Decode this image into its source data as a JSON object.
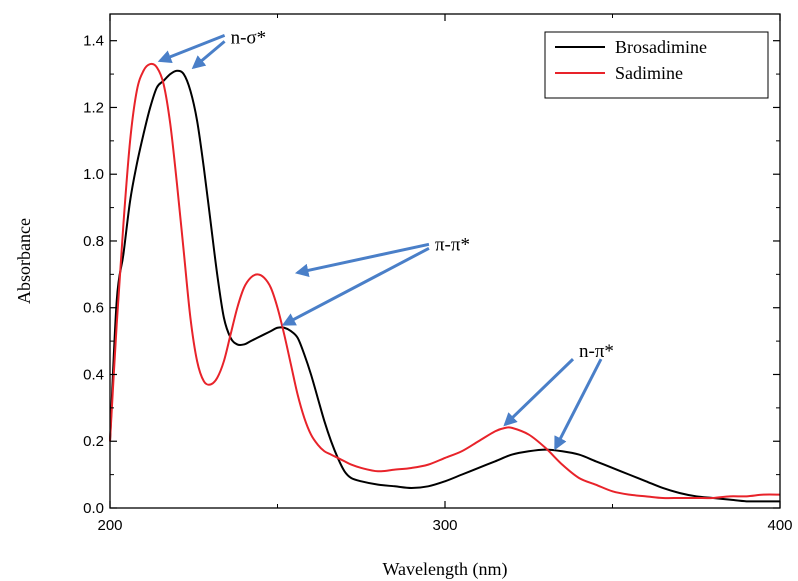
{
  "chart_data": {
    "type": "line",
    "title": "",
    "xlabel": "Wavelength (nm)",
    "ylabel": "Absorbance",
    "xlim": [
      200,
      400
    ],
    "ylim": [
      0.0,
      1.48
    ],
    "xticks": [
      "200",
      "300",
      "400"
    ],
    "yticks": [
      "0.0",
      "0.2",
      "0.4",
      "0.6",
      "0.8",
      "1.0",
      "1.2",
      "1.4"
    ],
    "grid": false,
    "legend_position": "top-right",
    "series": [
      {
        "name": "Brosadimine",
        "color": "#000000",
        "x": [
          200,
          202,
          204,
          206,
          208,
          210,
          212,
          214,
          216,
          218,
          220,
          222,
          224,
          226,
          228,
          230,
          232,
          234,
          236,
          238,
          240,
          242,
          244,
          246,
          248,
          250,
          252,
          254,
          256,
          258,
          260,
          262,
          264,
          266,
          268,
          270,
          272,
          275,
          280,
          285,
          290,
          295,
          300,
          305,
          310,
          315,
          320,
          325,
          330,
          335,
          340,
          345,
          350,
          355,
          360,
          365,
          370,
          375,
          380,
          385,
          390,
          395,
          400
        ],
        "y": [
          0.2,
          0.62,
          0.76,
          0.92,
          1.03,
          1.12,
          1.2,
          1.26,
          1.28,
          1.3,
          1.31,
          1.3,
          1.25,
          1.16,
          1.02,
          0.86,
          0.7,
          0.57,
          0.51,
          0.49,
          0.49,
          0.5,
          0.51,
          0.52,
          0.53,
          0.54,
          0.54,
          0.53,
          0.51,
          0.46,
          0.4,
          0.33,
          0.26,
          0.2,
          0.15,
          0.11,
          0.09,
          0.08,
          0.07,
          0.065,
          0.06,
          0.065,
          0.08,
          0.1,
          0.12,
          0.14,
          0.16,
          0.17,
          0.175,
          0.17,
          0.16,
          0.14,
          0.12,
          0.1,
          0.08,
          0.06,
          0.045,
          0.035,
          0.03,
          0.025,
          0.02,
          0.02,
          0.02
        ]
      },
      {
        "name": "Sadimine",
        "color": "#e8232a",
        "x": [
          200,
          202,
          204,
          206,
          208,
          210,
          212,
          214,
          216,
          218,
          220,
          222,
          224,
          226,
          228,
          230,
          232,
          234,
          236,
          238,
          240,
          242,
          244,
          246,
          248,
          250,
          252,
          254,
          256,
          258,
          260,
          262,
          264,
          266,
          268,
          270,
          272,
          275,
          280,
          285,
          290,
          295,
          300,
          305,
          310,
          315,
          318,
          320,
          325,
          330,
          335,
          340,
          345,
          350,
          355,
          360,
          365,
          370,
          375,
          380,
          385,
          390,
          395,
          400
        ],
        "y": [
          0.2,
          0.55,
          0.85,
          1.1,
          1.25,
          1.31,
          1.33,
          1.32,
          1.27,
          1.15,
          0.97,
          0.77,
          0.57,
          0.44,
          0.38,
          0.37,
          0.39,
          0.44,
          0.52,
          0.6,
          0.66,
          0.69,
          0.7,
          0.69,
          0.66,
          0.6,
          0.52,
          0.43,
          0.34,
          0.27,
          0.22,
          0.19,
          0.17,
          0.16,
          0.15,
          0.14,
          0.13,
          0.12,
          0.11,
          0.115,
          0.12,
          0.13,
          0.15,
          0.17,
          0.2,
          0.23,
          0.24,
          0.24,
          0.22,
          0.18,
          0.13,
          0.09,
          0.07,
          0.05,
          0.04,
          0.035,
          0.03,
          0.03,
          0.03,
          0.03,
          0.035,
          0.035,
          0.04,
          0.04
        ]
      }
    ],
    "annotations": [
      {
        "text": "n-σ*",
        "x": 236,
        "y": 1.41,
        "arrow_targets": [
          [
            215,
            1.34
          ],
          [
            225,
            1.32
          ]
        ]
      },
      {
        "text": "π-π*",
        "x": 297,
        "y": 0.79,
        "arrow_targets": [
          [
            256,
            0.705
          ],
          [
            252,
            0.55
          ]
        ]
      },
      {
        "text": "n-π*",
        "x": 340,
        "y": 0.47,
        "arrow_targets": [
          [
            318,
            0.25
          ],
          [
            333,
            0.18
          ]
        ]
      }
    ]
  }
}
